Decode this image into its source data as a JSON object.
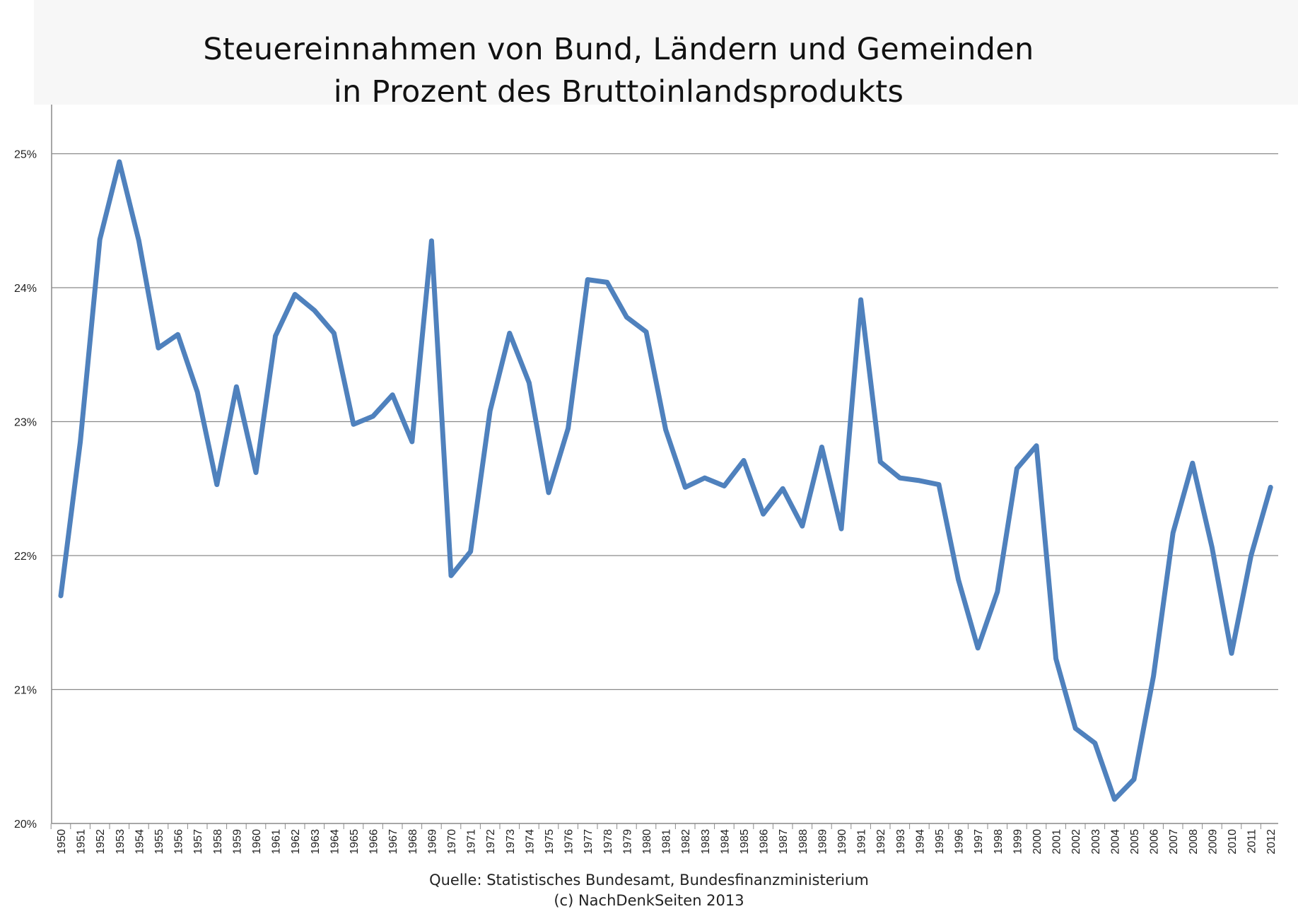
{
  "chart_data": {
    "type": "line",
    "title_line1": "Steuereinnahmen von Bund, Ländern und Gemeinden",
    "title_line2": "in Prozent des Bruttoinlandsprodukts",
    "xlabel": "",
    "ylabel": "",
    "ylim": [
      20,
      25.5
    ],
    "yticks": [
      20,
      21,
      22,
      23,
      24,
      25
    ],
    "ytick_labels": [
      "20%",
      "21%",
      "22%",
      "23%",
      "24%",
      "25%"
    ],
    "grid": true,
    "legend": "none",
    "line_color": "#4f81bd",
    "categories": [
      "1950",
      "1951",
      "1952",
      "1953",
      "1954",
      "1955",
      "1956",
      "1957",
      "1958",
      "1959",
      "1960",
      "1961",
      "1962",
      "1963",
      "1964",
      "1965",
      "1966",
      "1967",
      "1968",
      "1969",
      "1970",
      "1971",
      "1972",
      "1973",
      "1974",
      "1975",
      "1976",
      "1977",
      "1978",
      "1979",
      "1980",
      "1981",
      "1982",
      "1983",
      "1984",
      "1985",
      "1986",
      "1987",
      "1988",
      "1989",
      "1990",
      "1991",
      "1992",
      "1993",
      "1994",
      "1995",
      "1996",
      "1997",
      "1998",
      "1999",
      "2000",
      "2001",
      "2002",
      "2003",
      "2004",
      "2005",
      "2006",
      "2007",
      "2008",
      "2009",
      "2010",
      "2011",
      "2012"
    ],
    "series": [
      {
        "values": [
          21.7,
          22.85,
          24.36,
          24.94,
          24.35,
          23.55,
          23.65,
          23.22,
          22.53,
          23.26,
          22.62,
          23.64,
          23.95,
          23.83,
          23.66,
          22.98,
          23.04,
          23.2,
          22.85,
          24.35,
          21.85,
          22.03,
          23.08,
          23.66,
          23.29,
          22.47,
          22.95,
          24.06,
          24.04,
          23.78,
          23.67,
          22.94,
          22.51,
          22.58,
          22.52,
          22.71,
          22.31,
          22.5,
          22.22,
          22.81,
          22.2,
          23.91,
          22.7,
          22.58,
          22.56,
          22.53,
          21.82,
          21.31,
          21.73,
          22.65,
          22.82,
          21.23,
          20.71,
          20.6,
          20.18,
          20.33,
          21.1,
          22.17,
          22.69,
          22.06,
          21.27,
          22.0,
          22.51
        ]
      }
    ]
  },
  "footer": {
    "source": "Quelle: Statistisches Bundesamt, Bundesfinanzministerium",
    "copyright": "(c) NachDenkSeiten 2013"
  }
}
